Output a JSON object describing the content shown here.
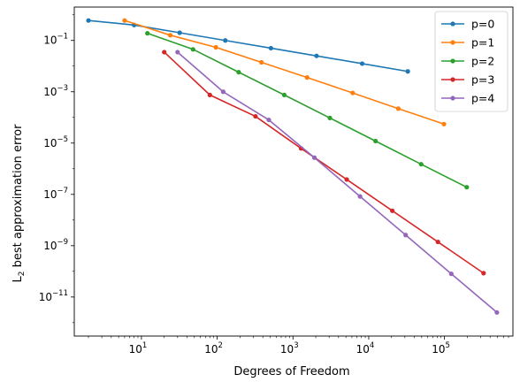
{
  "chart_data": {
    "type": "line",
    "title": "",
    "xlabel": "Degrees of Freedom",
    "ylabel_main": "L",
    "ylabel_sub": "2",
    "ylabel_rest": " best approximation error",
    "xscale": "log",
    "yscale": "log",
    "xlim": [
      1.3,
      800000
    ],
    "ylim": [
      3e-13,
      2
    ],
    "grid": false,
    "legend_position": "top-right",
    "x_ticks": [
      {
        "value": 10,
        "base": "10",
        "exp": "1"
      },
      {
        "value": 100,
        "base": "10",
        "exp": "2"
      },
      {
        "value": 1000,
        "base": "10",
        "exp": "3"
      },
      {
        "value": 10000,
        "base": "10",
        "exp": "4"
      },
      {
        "value": 100000,
        "base": "10",
        "exp": "5"
      }
    ],
    "y_ticks": [
      {
        "value": 0.1,
        "base": "10",
        "exp": "−1"
      },
      {
        "value": 0.001,
        "base": "10",
        "exp": "−3"
      },
      {
        "value": 1e-05,
        "base": "10",
        "exp": "−5"
      },
      {
        "value": 1e-07,
        "base": "10",
        "exp": "−7"
      },
      {
        "value": 1e-09,
        "base": "10",
        "exp": "−9"
      },
      {
        "value": 1e-11,
        "base": "10",
        "exp": "−11"
      }
    ],
    "series": [
      {
        "name": "p=0",
        "color": "#1f77b4",
        "x": [
          2,
          8,
          32,
          128,
          512,
          2048,
          8192,
          32768
        ],
        "y": [
          0.6,
          0.4,
          0.2,
          0.1,
          0.05,
          0.025,
          0.0125,
          0.0062
        ]
      },
      {
        "name": "p=1",
        "color": "#ff7f0e",
        "x": [
          6,
          24,
          96,
          384,
          1536,
          6144,
          24576,
          98304
        ],
        "y": [
          0.6,
          0.16,
          0.054,
          0.014,
          0.0036,
          0.0009,
          0.00022,
          5.5e-05
        ]
      },
      {
        "name": "p=2",
        "color": "#2ca02c",
        "x": [
          12,
          48,
          192,
          768,
          3072,
          12288,
          49152,
          196608
        ],
        "y": [
          0.19,
          0.045,
          0.0058,
          0.00075,
          9.5e-05,
          1.2e-05,
          1.5e-06,
          1.9e-07
        ]
      },
      {
        "name": "p=3",
        "color": "#d62728",
        "x": [
          20,
          80,
          320,
          1280,
          5120,
          20480,
          81920,
          327680
        ],
        "y": [
          0.035,
          0.00075,
          0.00011,
          6.2e-06,
          3.8e-07,
          2.3e-08,
          1.4e-09,
          8.5e-11
        ]
      },
      {
        "name": "p=4",
        "color": "#9467bd",
        "x": [
          30,
          120,
          480,
          1920,
          7680,
          30720,
          122880,
          491520
        ],
        "y": [
          0.035,
          0.001,
          8e-05,
          2.7e-06,
          8.3e-08,
          2.6e-09,
          8e-11,
          2.5e-12
        ]
      }
    ]
  }
}
